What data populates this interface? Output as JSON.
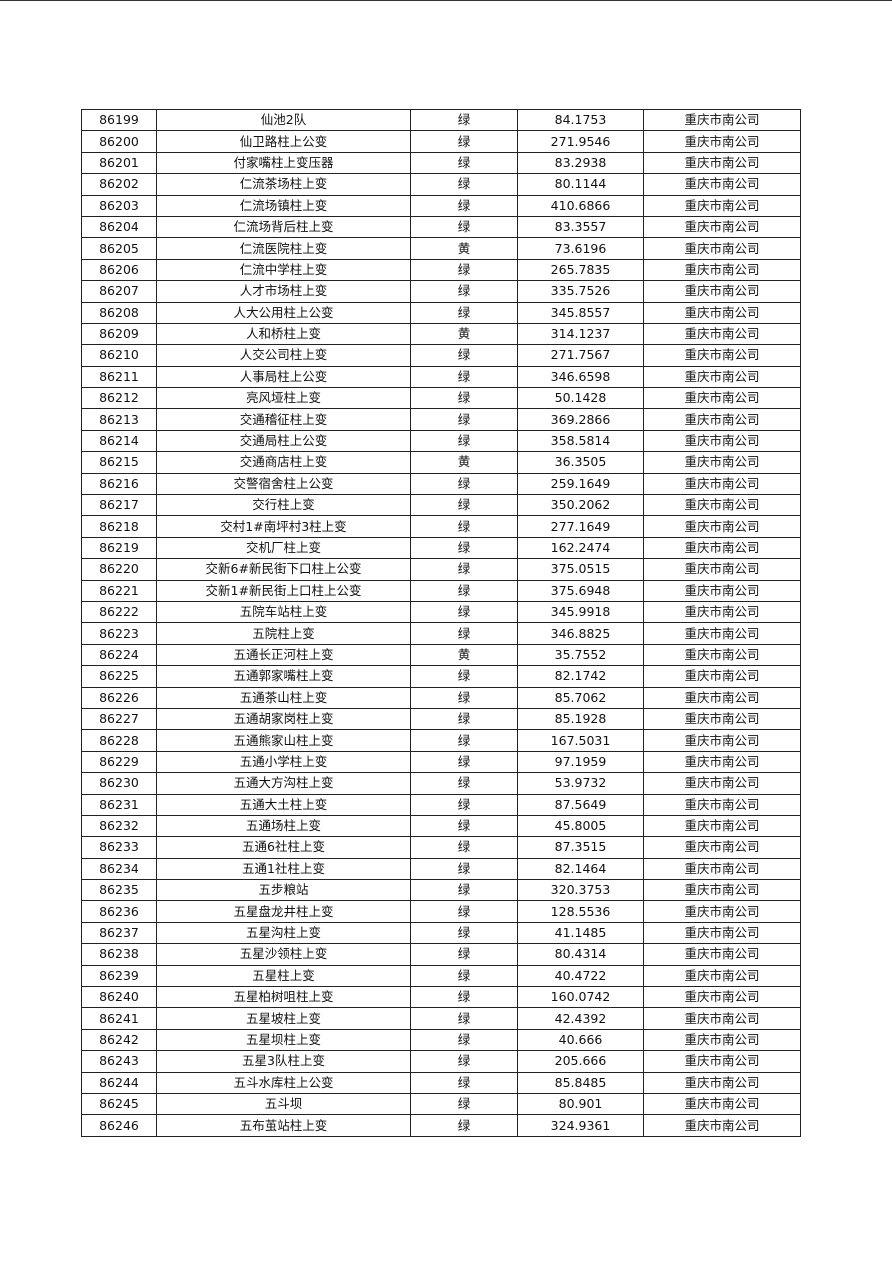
{
  "table": {
    "rows": [
      [
        "86199",
        "仙池2队",
        "绿",
        "84.1753",
        "重庆市南公司"
      ],
      [
        "86200",
        "仙卫路柱上公变",
        "绿",
        "271.9546",
        "重庆市南公司"
      ],
      [
        "86201",
        "付家嘴柱上变压器",
        "绿",
        "83.2938",
        "重庆市南公司"
      ],
      [
        "86202",
        "仁流茶场柱上变",
        "绿",
        "80.1144",
        "重庆市南公司"
      ],
      [
        "86203",
        "仁流场镇柱上变",
        "绿",
        "410.6866",
        "重庆市南公司"
      ],
      [
        "86204",
        "仁流场背后柱上变",
        "绿",
        "83.3557",
        "重庆市南公司"
      ],
      [
        "86205",
        "仁流医院柱上变",
        "黄",
        "73.6196",
        "重庆市南公司"
      ],
      [
        "86206",
        "仁流中学柱上变",
        "绿",
        "265.7835",
        "重庆市南公司"
      ],
      [
        "86207",
        "人才市场柱上变",
        "绿",
        "335.7526",
        "重庆市南公司"
      ],
      [
        "86208",
        "人大公用柱上公变",
        "绿",
        "345.8557",
        "重庆市南公司"
      ],
      [
        "86209",
        "人和桥柱上变",
        "黄",
        "314.1237",
        "重庆市南公司"
      ],
      [
        "86210",
        "人交公司柱上变",
        "绿",
        "271.7567",
        "重庆市南公司"
      ],
      [
        "86211",
        "人事局柱上公变",
        "绿",
        "346.6598",
        "重庆市南公司"
      ],
      [
        "86212",
        "亮风垭柱上变",
        "绿",
        "50.1428",
        "重庆市南公司"
      ],
      [
        "86213",
        "交通稽征柱上变",
        "绿",
        "369.2866",
        "重庆市南公司"
      ],
      [
        "86214",
        "交通局柱上公变",
        "绿",
        "358.5814",
        "重庆市南公司"
      ],
      [
        "86215",
        "交通商店柱上变",
        "黄",
        "36.3505",
        "重庆市南公司"
      ],
      [
        "86216",
        "交警宿舍柱上公变",
        "绿",
        "259.1649",
        "重庆市南公司"
      ],
      [
        "86217",
        "交行柱上变",
        "绿",
        "350.2062",
        "重庆市南公司"
      ],
      [
        "86218",
        "交村1#南坪村3柱上变",
        "绿",
        "277.1649",
        "重庆市南公司"
      ],
      [
        "86219",
        "交机厂柱上变",
        "绿",
        "162.2474",
        "重庆市南公司"
      ],
      [
        "86220",
        "交新6#新民街下口柱上公变",
        "绿",
        "375.0515",
        "重庆市南公司"
      ],
      [
        "86221",
        "交新1#新民街上口柱上公变",
        "绿",
        "375.6948",
        "重庆市南公司"
      ],
      [
        "86222",
        "五院车站柱上变",
        "绿",
        "345.9918",
        "重庆市南公司"
      ],
      [
        "86223",
        "五院柱上变",
        "绿",
        "346.8825",
        "重庆市南公司"
      ],
      [
        "86224",
        "五通长正河柱上变",
        "黄",
        "35.7552",
        "重庆市南公司"
      ],
      [
        "86225",
        "五通郭家嘴柱上变",
        "绿",
        "82.1742",
        "重庆市南公司"
      ],
      [
        "86226",
        "五通茶山柱上变",
        "绿",
        "85.7062",
        "重庆市南公司"
      ],
      [
        "86227",
        "五通胡家岗柱上变",
        "绿",
        "85.1928",
        "重庆市南公司"
      ],
      [
        "86228",
        "五通熊家山柱上变",
        "绿",
        "167.5031",
        "重庆市南公司"
      ],
      [
        "86229",
        "五通小学柱上变",
        "绿",
        "97.1959",
        "重庆市南公司"
      ],
      [
        "86230",
        "五通大方沟柱上变",
        "绿",
        "53.9732",
        "重庆市南公司"
      ],
      [
        "86231",
        "五通大土柱上变",
        "绿",
        "87.5649",
        "重庆市南公司"
      ],
      [
        "86232",
        "五通场柱上变",
        "绿",
        "45.8005",
        "重庆市南公司"
      ],
      [
        "86233",
        "五通6社柱上变",
        "绿",
        "87.3515",
        "重庆市南公司"
      ],
      [
        "86234",
        "五通1社柱上变",
        "绿",
        "82.1464",
        "重庆市南公司"
      ],
      [
        "86235",
        "五步粮站",
        "绿",
        "320.3753",
        "重庆市南公司"
      ],
      [
        "86236",
        "五星盘龙井柱上变",
        "绿",
        "128.5536",
        "重庆市南公司"
      ],
      [
        "86237",
        "五星沟柱上变",
        "绿",
        "41.1485",
        "重庆市南公司"
      ],
      [
        "86238",
        "五星沙领柱上变",
        "绿",
        "80.4314",
        "重庆市南公司"
      ],
      [
        "86239",
        "五星柱上变",
        "绿",
        "40.4722",
        "重庆市南公司"
      ],
      [
        "86240",
        "五星柏树咀柱上变",
        "绿",
        "160.0742",
        "重庆市南公司"
      ],
      [
        "86241",
        "五星坡柱上变",
        "绿",
        "42.4392",
        "重庆市南公司"
      ],
      [
        "86242",
        "五星坝柱上变",
        "绿",
        "40.666",
        "重庆市南公司"
      ],
      [
        "86243",
        "五星3队柱上变",
        "绿",
        "205.666",
        "重庆市南公司"
      ],
      [
        "86244",
        "五斗水库柱上公变",
        "绿",
        "85.8485",
        "重庆市南公司"
      ],
      [
        "86245",
        "五斗坝",
        "绿",
        "80.901",
        "重庆市南公司"
      ],
      [
        "86246",
        "五布茧站柱上变",
        "绿",
        "324.9361",
        "重庆市南公司"
      ]
    ]
  }
}
